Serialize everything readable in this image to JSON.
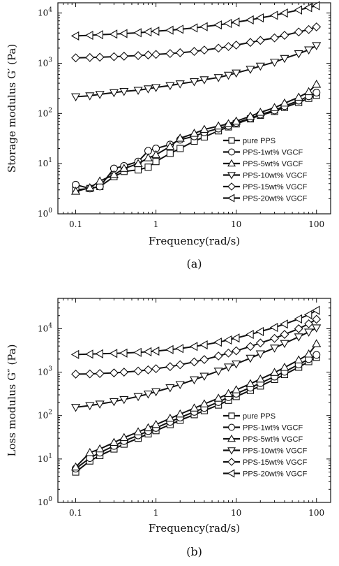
{
  "chart_data": [
    {
      "type": "line",
      "panel_label": "(a)",
      "xlabel": "Frequency(rad/s)",
      "ylabel": "Storage modulus G′ (Pa)",
      "xscale": "log",
      "yscale": "log",
      "xlim": [
        0.06,
        150
      ],
      "ylim": [
        1,
        16000
      ],
      "xticks": [
        0.1,
        1,
        10,
        100
      ],
      "xtick_labels": [
        "0.1",
        "1",
        "10",
        "100"
      ],
      "yticks": [
        1,
        10,
        100,
        1000,
        10000
      ],
      "ytick_base": "10",
      "ytick_exps": [
        "0",
        "1",
        "2",
        "3",
        "4"
      ],
      "legend_position": "bottom-right",
      "series": [
        {
          "name": "pure PPS",
          "marker": "square",
          "x": [
            0.1,
            0.15,
            0.2,
            0.3,
            0.4,
            0.6,
            0.8,
            1,
            1.5,
            2,
            3,
            4,
            6,
            8,
            10,
            15,
            20,
            30,
            40,
            60,
            80,
            100
          ],
          "y": [
            3,
            3.2,
            3.5,
            5.5,
            7,
            7.5,
            8.5,
            11,
            16,
            20,
            28,
            34,
            45,
            54,
            62,
            78,
            92,
            110,
            132,
            165,
            200,
            230
          ]
        },
        {
          "name": "PPS-1wt% VGCF",
          "marker": "circle",
          "x": [
            0.1,
            0.15,
            0.2,
            0.3,
            0.4,
            0.6,
            0.8,
            1,
            1.5,
            2,
            3,
            4,
            6,
            8,
            10,
            15,
            20,
            30,
            40,
            60,
            80,
            100
          ],
          "y": [
            3.8,
            3.2,
            3.5,
            8,
            9,
            11,
            18,
            20,
            24,
            30,
            35,
            42,
            50,
            57,
            65,
            80,
            95,
            115,
            140,
            180,
            220,
            260
          ]
        },
        {
          "name": "PPS-5wt%  VGCF",
          "marker": "triangle-up",
          "x": [
            0.1,
            0.15,
            0.2,
            0.3,
            0.4,
            0.6,
            0.8,
            1,
            1.5,
            2,
            3,
            4,
            6,
            8,
            10,
            15,
            20,
            30,
            40,
            60,
            80,
            100
          ],
          "y": [
            2.8,
            3.3,
            4.5,
            6,
            8,
            10,
            13,
            15,
            22,
            32,
            40,
            48,
            56,
            62,
            70,
            88,
            105,
            130,
            160,
            210,
            270,
            380
          ]
        },
        {
          "name": "PPS-10wt% VGCF",
          "marker": "triangle-down",
          "x": [
            0.1,
            0.15,
            0.2,
            0.3,
            0.4,
            0.6,
            0.8,
            1,
            1.5,
            2,
            3,
            4,
            6,
            8,
            10,
            15,
            20,
            30,
            40,
            60,
            80,
            100
          ],
          "y": [
            215,
            225,
            240,
            260,
            275,
            290,
            310,
            330,
            360,
            390,
            430,
            470,
            520,
            580,
            640,
            760,
            880,
            1050,
            1250,
            1550,
            1850,
            2250
          ]
        },
        {
          "name": "PPS-15wt% VGCF",
          "marker": "diamond",
          "x": [
            0.1,
            0.15,
            0.2,
            0.3,
            0.4,
            0.6,
            0.8,
            1,
            1.5,
            2,
            3,
            4,
            6,
            8,
            10,
            15,
            20,
            30,
            40,
            60,
            80,
            100
          ],
          "y": [
            1280,
            1300,
            1320,
            1350,
            1380,
            1420,
            1460,
            1500,
            1560,
            1620,
            1720,
            1830,
            2000,
            2150,
            2300,
            2600,
            2850,
            3200,
            3600,
            4200,
            4700,
            5300
          ]
        },
        {
          "name": "PPS-20wt% VGCF",
          "marker": "triangle-left",
          "x": [
            0.1,
            0.15,
            0.2,
            0.3,
            0.4,
            0.6,
            0.8,
            1,
            1.5,
            2,
            3,
            4,
            6,
            8,
            10,
            15,
            20,
            30,
            40,
            60,
            80,
            100
          ],
          "y": [
            3500,
            3600,
            3700,
            3800,
            3900,
            4050,
            4200,
            4350,
            4550,
            4750,
            5050,
            5350,
            5800,
            6200,
            6600,
            7300,
            8000,
            9000,
            10000,
            11500,
            12800,
            14000
          ]
        }
      ]
    },
    {
      "type": "line",
      "panel_label": "(b)",
      "xlabel": "Frequency(rad/s)",
      "ylabel": "Loss modulus G″ (Pa)",
      "xscale": "log",
      "yscale": "log",
      "xlim": [
        0.06,
        150
      ],
      "ylim": [
        1,
        50000
      ],
      "xticks": [
        0.1,
        1,
        10,
        100
      ],
      "xtick_labels": [
        "0.1",
        "1",
        "10",
        "100"
      ],
      "yticks": [
        1,
        10,
        100,
        1000,
        10000
      ],
      "ytick_base": "10",
      "ytick_exps": [
        "0",
        "1",
        "2",
        "3",
        "4"
      ],
      "legend_position": "bottom-right",
      "series": [
        {
          "name": "pure PPS",
          "marker": "square",
          "x": [
            0.1,
            0.15,
            0.2,
            0.3,
            0.4,
            0.6,
            0.8,
            1,
            1.5,
            2,
            3,
            4,
            6,
            8,
            10,
            15,
            20,
            30,
            40,
            60,
            80,
            100
          ],
          "y": [
            5,
            9,
            12,
            17,
            22,
            30,
            38,
            45,
            62,
            78,
            105,
            130,
            175,
            225,
            275,
            380,
            480,
            680,
            880,
            1300,
            1750,
            2200
          ]
        },
        {
          "name": "PPS-1wt% VGCF",
          "marker": "circle",
          "x": [
            0.1,
            0.15,
            0.2,
            0.3,
            0.4,
            0.6,
            0.8,
            1,
            1.5,
            2,
            3,
            4,
            6,
            8,
            10,
            15,
            20,
            30,
            40,
            60,
            80,
            100
          ],
          "y": [
            6,
            10.5,
            14,
            20,
            26,
            35,
            44,
            52,
            72,
            90,
            122,
            150,
            205,
            265,
            320,
            440,
            560,
            790,
            1020,
            1500,
            2000,
            2500
          ]
        },
        {
          "name": "PPS-5wt% VGCF",
          "marker": "triangle-up",
          "x": [
            0.1,
            0.15,
            0.2,
            0.3,
            0.4,
            0.6,
            0.8,
            1,
            1.5,
            2,
            3,
            4,
            6,
            8,
            10,
            15,
            20,
            30,
            40,
            60,
            80,
            100
          ],
          "y": [
            6.5,
            14,
            17,
            24,
            31,
            42,
            52,
            62,
            86,
            108,
            148,
            185,
            250,
            320,
            390,
            540,
            690,
            980,
            1280,
            1900,
            2600,
            4500
          ]
        },
        {
          "name": "PPS-10wt% VGCF",
          "marker": "triangle-down",
          "x": [
            0.1,
            0.15,
            0.2,
            0.3,
            0.4,
            0.6,
            0.8,
            1,
            1.5,
            2,
            3,
            4,
            6,
            8,
            10,
            15,
            20,
            30,
            40,
            60,
            80,
            100
          ],
          "y": [
            155,
            170,
            185,
            210,
            235,
            275,
            315,
            355,
            440,
            520,
            670,
            810,
            1060,
            1320,
            1550,
            2100,
            2650,
            3600,
            4600,
            6500,
            8400,
            10500
          ]
        },
        {
          "name": "PPS-15wt% VGCF",
          "marker": "diamond",
          "x": [
            0.1,
            0.15,
            0.2,
            0.3,
            0.4,
            0.6,
            0.8,
            1,
            1.5,
            2,
            3,
            4,
            6,
            8,
            10,
            15,
            20,
            30,
            40,
            60,
            80,
            100
          ],
          "y": [
            900,
            910,
            930,
            960,
            1000,
            1060,
            1130,
            1200,
            1340,
            1480,
            1720,
            1950,
            2350,
            2750,
            3100,
            3900,
            4700,
            6000,
            7400,
            10000,
            13000,
            16500
          ]
        },
        {
          "name": "PPS-20wt% VGCF",
          "marker": "triangle-left",
          "x": [
            0.1,
            0.15,
            0.2,
            0.3,
            0.4,
            0.6,
            0.8,
            1,
            1.5,
            2,
            3,
            4,
            6,
            8,
            10,
            15,
            20,
            30,
            40,
            60,
            80,
            100
          ],
          "y": [
            2550,
            2600,
            2650,
            2700,
            2750,
            2850,
            2950,
            3050,
            3300,
            3500,
            3900,
            4250,
            4900,
            5500,
            6100,
            7400,
            8600,
            10700,
            12800,
            16800,
            21000,
            26500
          ]
        }
      ]
    }
  ]
}
